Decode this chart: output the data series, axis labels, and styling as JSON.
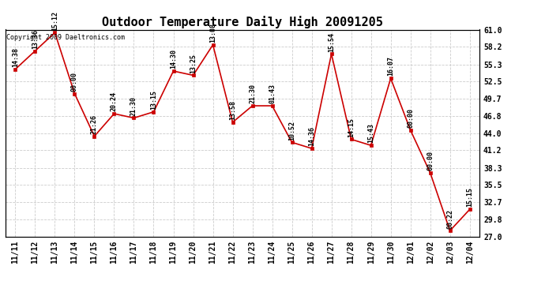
{
  "title": "Outdoor Temperature Daily High 20091205",
  "copyright": "Copyright 2009 Daeltronics.com",
  "x_labels": [
    "11/11",
    "11/12",
    "11/13",
    "11/14",
    "11/15",
    "11/16",
    "11/17",
    "11/18",
    "11/19",
    "11/20",
    "11/21",
    "11/22",
    "11/23",
    "11/24",
    "11/25",
    "11/26",
    "11/27",
    "11/28",
    "11/29",
    "11/30",
    "12/01",
    "12/02",
    "12/03",
    "12/04"
  ],
  "y_values": [
    54.5,
    57.5,
    60.5,
    50.5,
    43.5,
    47.2,
    46.5,
    47.5,
    54.2,
    53.5,
    58.5,
    45.8,
    48.5,
    48.5,
    42.5,
    41.5,
    57.0,
    43.0,
    42.0,
    53.0,
    44.5,
    37.5,
    28.0,
    31.5
  ],
  "annotations": [
    "14:38",
    "13:36",
    "15:12",
    "00:00",
    "21:26",
    "20:24",
    "21:30",
    "13:15",
    "14:30",
    "13:25",
    "13:08",
    "13:58",
    "21:30",
    "01:43",
    "10:52",
    "14:36",
    "15:54",
    "14:15",
    "15:43",
    "16:07",
    "00:00",
    "00:00",
    "00:22",
    "15:15"
  ],
  "line_color": "#cc0000",
  "marker_color": "#cc0000",
  "bg_color": "#ffffff",
  "plot_bg_color": "#ffffff",
  "grid_color": "#cccccc",
  "y_ticks": [
    27.0,
    29.8,
    32.7,
    35.5,
    38.3,
    41.2,
    44.0,
    46.8,
    49.7,
    52.5,
    55.3,
    58.2,
    61.0
  ],
  "ylim": [
    27.0,
    61.0
  ],
  "title_fontsize": 11,
  "annotation_fontsize": 6,
  "tick_fontsize": 7,
  "copyright_fontsize": 6
}
